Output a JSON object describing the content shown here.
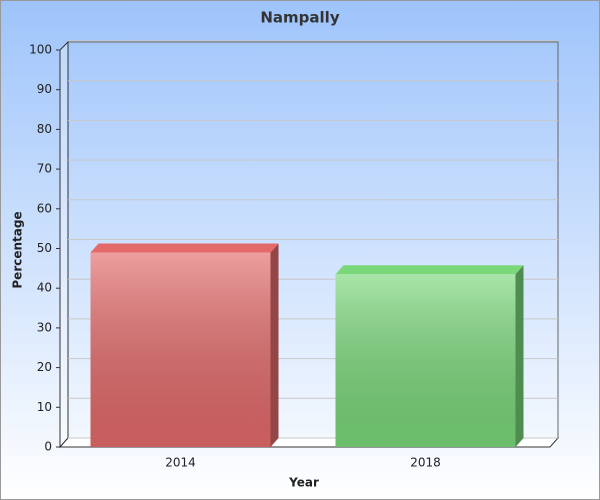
{
  "chart_data": {
    "type": "bar",
    "title": "Nampally",
    "x_label": "Year",
    "y_label": "Percentage",
    "categories": [
      "2014",
      "2018"
    ],
    "values": [
      49,
      43.5
    ],
    "colors": [
      "#e46a6a",
      "#7ad87a"
    ],
    "ylim": [
      0,
      100
    ],
    "yticks": [
      0,
      10,
      20,
      30,
      40,
      50,
      60,
      70,
      80,
      90,
      100
    ],
    "grid": true
  }
}
